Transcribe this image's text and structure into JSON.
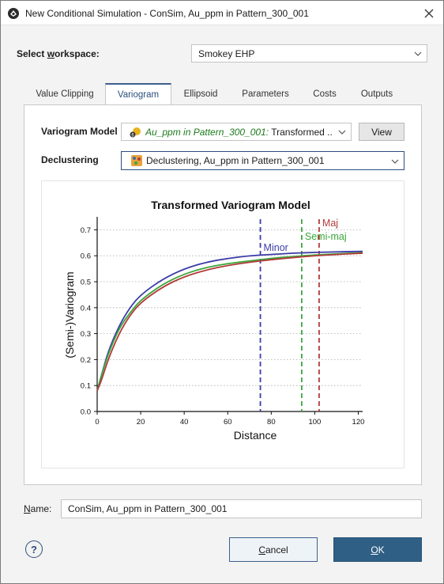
{
  "window": {
    "title": "New Conditional Simulation - ConSim, Au_ppm in Pattern_300_001",
    "icons": {
      "app": "app-logo-icon",
      "close": "close-icon"
    }
  },
  "workspace": {
    "label_pre": "Select ",
    "label_underlined": "w",
    "label_post": "orkspace:",
    "value": "Smokey EHP"
  },
  "tabs": [
    "Value Clipping",
    "Variogram",
    "Ellipsoid",
    "Parameters",
    "Costs",
    "Outputs"
  ],
  "active_tab": "Variogram",
  "variogram_model": {
    "label": "Variogram Model",
    "value_italic": "Au_ppm in Pattern_300_001:",
    "value_rest": " Transformed ...",
    "view_button": "View"
  },
  "declustering": {
    "label": "Declustering",
    "value": "Declustering, Au_ppm in Pattern_300_001"
  },
  "chart_data": {
    "type": "line",
    "title": "Transformed Variogram Model",
    "xlabel": "Distance",
    "ylabel": "(Semi-)Variogram",
    "xlim": [
      0,
      122
    ],
    "ylim": [
      0,
      0.75
    ],
    "xticks": [
      "0",
      "20",
      "40",
      "60",
      "80",
      "100",
      "120"
    ],
    "yticks": [
      "0.0",
      "0.1",
      "0.2",
      "0.3",
      "0.4",
      "0.5",
      "0.6",
      "0.7"
    ],
    "grid": "horizontal dotted",
    "series": [
      {
        "name": "Minor",
        "color": "#3b3ba8",
        "x": [
          0,
          2,
          5,
          10,
          15,
          20,
          30,
          40,
          50,
          60,
          70,
          80,
          90,
          100,
          110,
          122
        ],
        "y": [
          0.08,
          0.14,
          0.23,
          0.33,
          0.4,
          0.45,
          0.51,
          0.55,
          0.575,
          0.59,
          0.6,
          0.605,
          0.61,
          0.613,
          0.615,
          0.617
        ]
      },
      {
        "name": "Semi-maj",
        "color": "#3aa63a",
        "x": [
          0,
          2,
          5,
          10,
          15,
          20,
          30,
          40,
          50,
          60,
          70,
          80,
          90,
          100,
          110,
          122
        ],
        "y": [
          0.08,
          0.14,
          0.22,
          0.32,
          0.38,
          0.43,
          0.49,
          0.53,
          0.555,
          0.57,
          0.58,
          0.59,
          0.597,
          0.603,
          0.607,
          0.612
        ]
      },
      {
        "name": "Maj",
        "color": "#b33a3a",
        "x": [
          0,
          2,
          5,
          10,
          15,
          20,
          30,
          40,
          50,
          60,
          70,
          80,
          90,
          100,
          110,
          122
        ],
        "y": [
          0.08,
          0.12,
          0.2,
          0.3,
          0.37,
          0.42,
          0.48,
          0.52,
          0.545,
          0.563,
          0.575,
          0.585,
          0.593,
          0.6,
          0.605,
          0.61
        ]
      }
    ],
    "range_lines": [
      {
        "label": "Minor",
        "x": 75,
        "color": "#3b3ba8"
      },
      {
        "label": "Semi-maj",
        "x": 94,
        "color": "#3aa63a"
      },
      {
        "label": "Maj",
        "x": 102,
        "color": "#b33a3a"
      }
    ]
  },
  "name_field": {
    "label_underlined": "N",
    "label_post": "ame:",
    "value": "ConSim, Au_ppm in Pattern_300_001"
  },
  "buttons": {
    "help": "?",
    "cancel_underlined": "C",
    "cancel_post": "ancel",
    "ok_underlined": "O",
    "ok_post": "K"
  }
}
